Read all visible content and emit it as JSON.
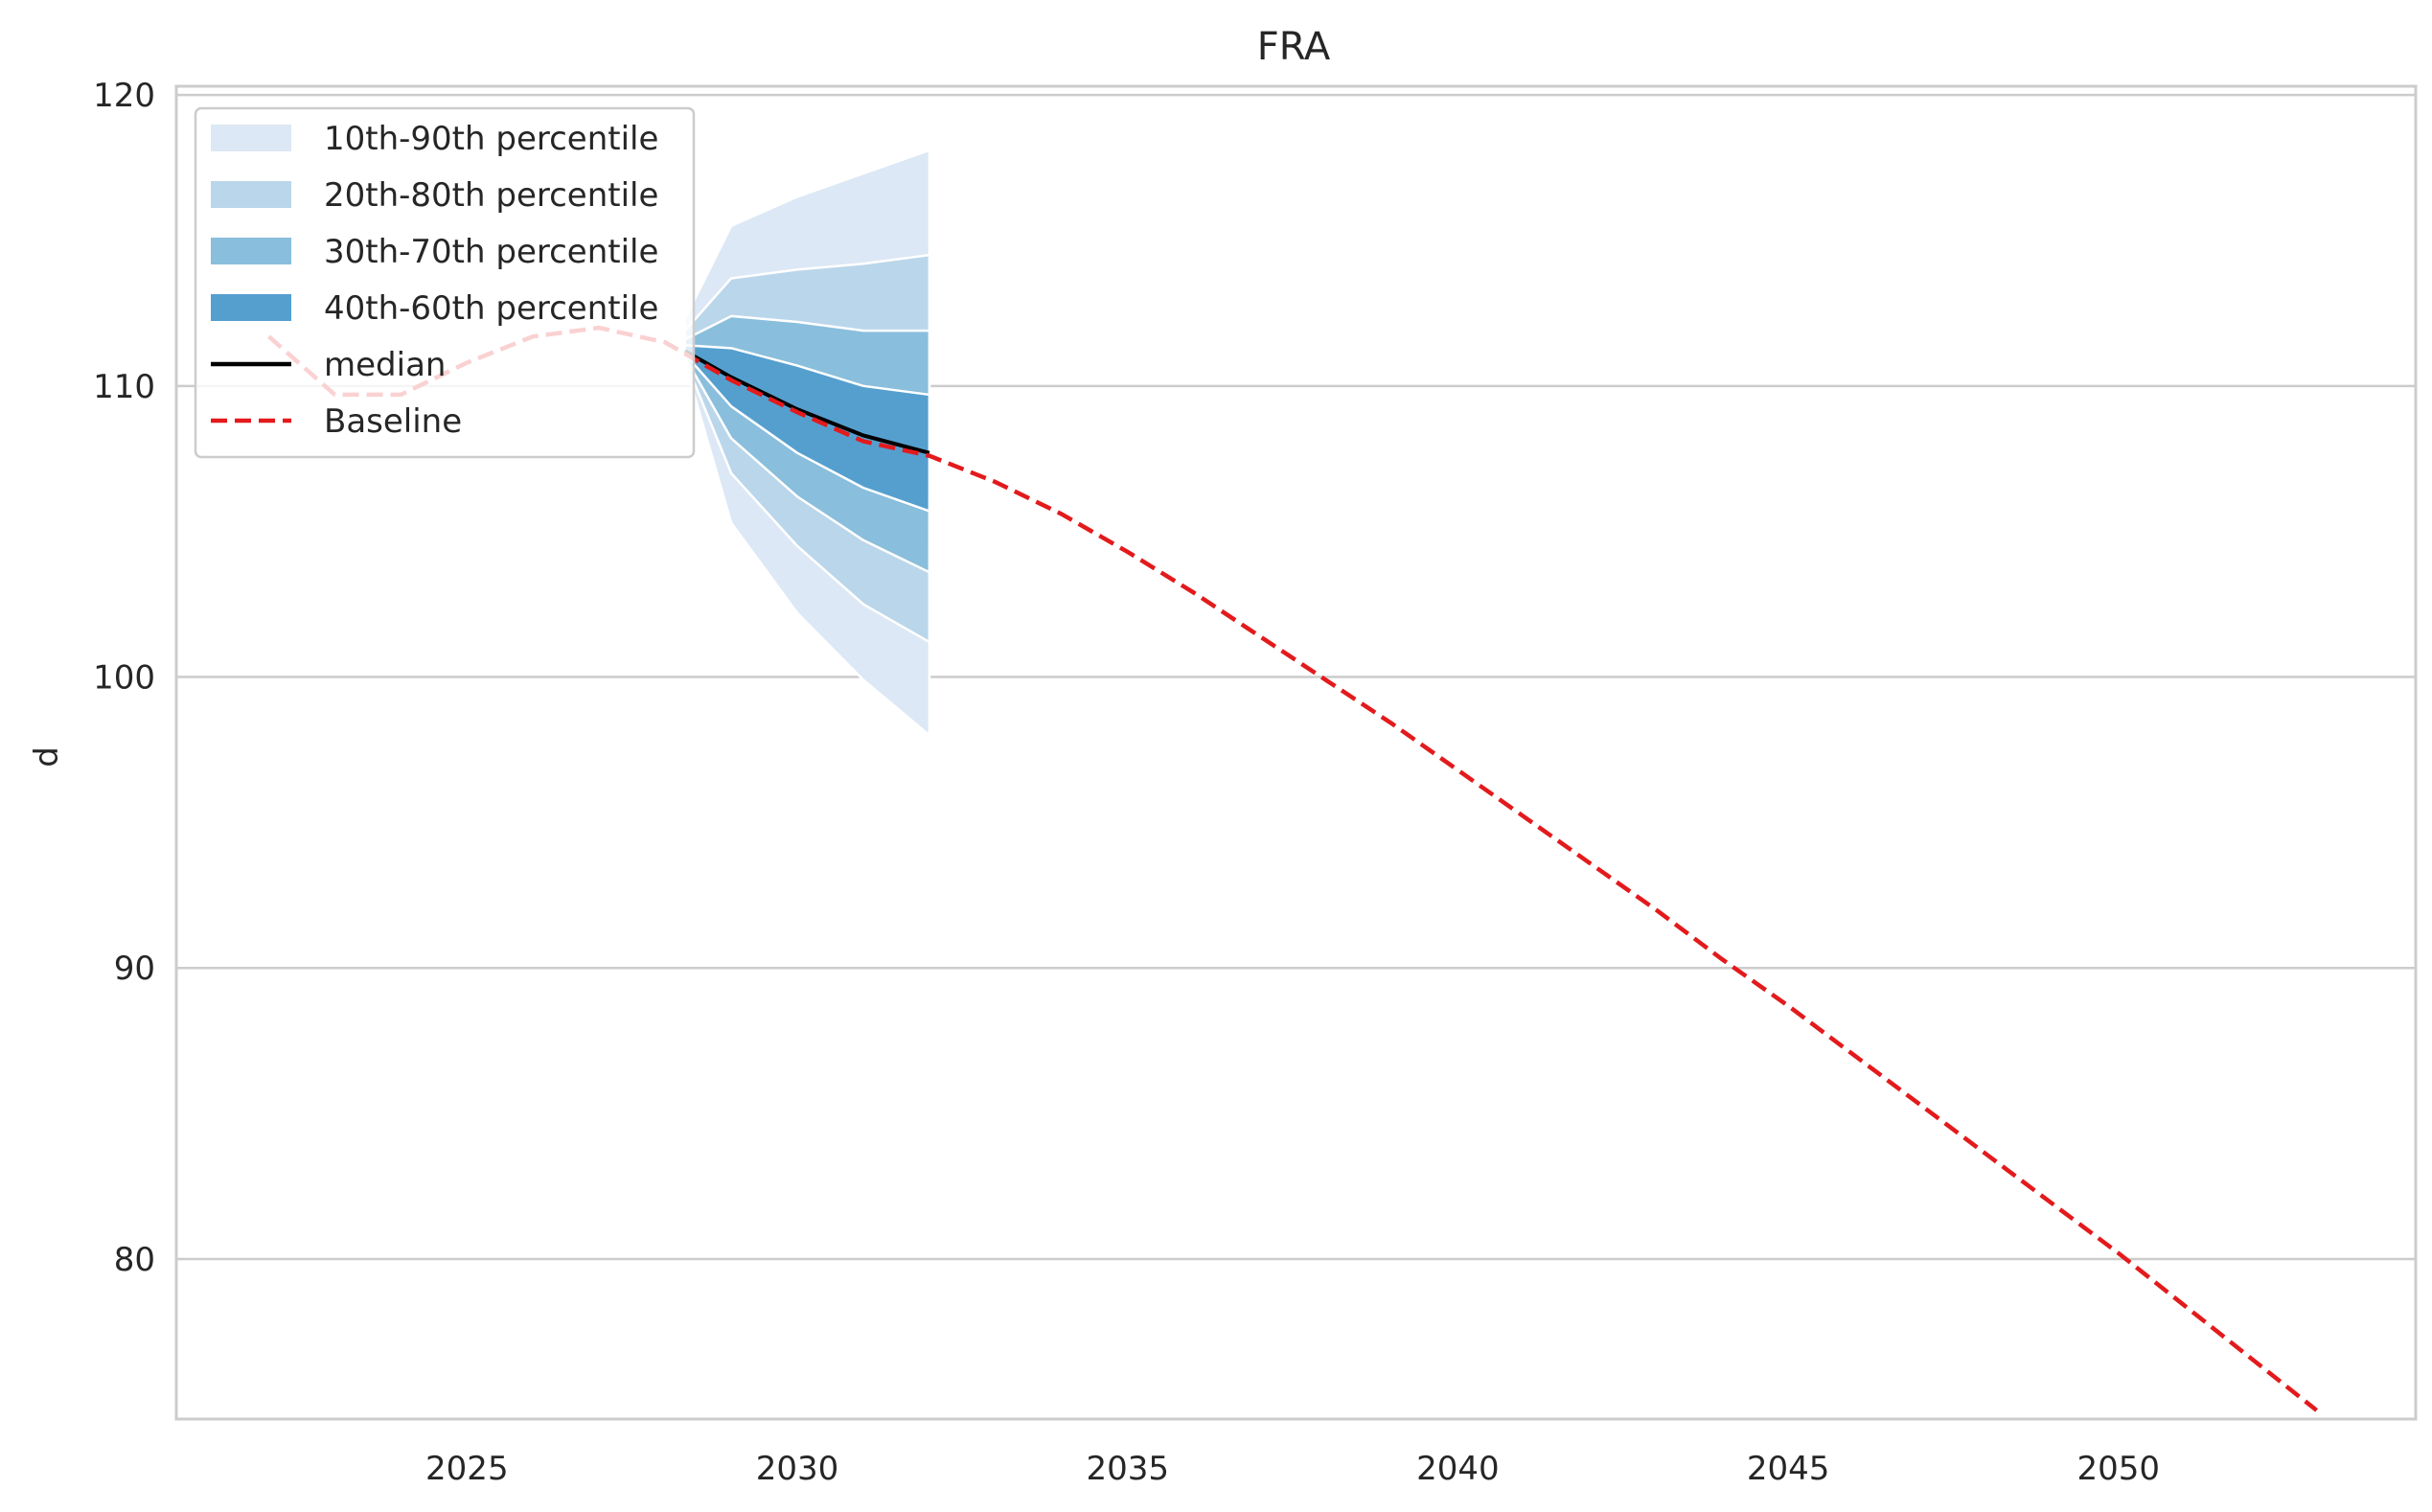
{
  "chart_data": {
    "type": "area",
    "title": "FRA",
    "xlabel": "",
    "ylabel": "d",
    "xlim": [
      2020.6,
      2054.5
    ],
    "ylim": [
      74.5,
      120.3
    ],
    "x_ticks": [
      2025,
      2030,
      2035,
      2040,
      2045,
      2050
    ],
    "y_ticks": [
      80,
      90,
      100,
      110,
      120
    ],
    "grid": "horizontal",
    "legend_position": "top-left",
    "legend": [
      {
        "label": "10th-90th percentile",
        "kind": "patch",
        "color": "#dce8f5"
      },
      {
        "label": "20th-80th percentile",
        "kind": "patch",
        "color": "#bad6ea"
      },
      {
        "label": "30th-70th percentile",
        "kind": "patch",
        "color": "#89bedc"
      },
      {
        "label": "40th-60th percentile",
        "kind": "patch",
        "color": "#559fcf"
      },
      {
        "label": "median",
        "kind": "line",
        "color": "#000000"
      },
      {
        "label": "Baseline",
        "kind": "dashed",
        "color": "#e31a1c"
      }
    ],
    "bands": {
      "x": [
        2028.3,
        2029,
        2030,
        2031,
        2032
      ],
      "p10": [
        110.8,
        105.3,
        102.2,
        99.9,
        98.0
      ],
      "p20": [
        110.9,
        107.0,
        104.5,
        102.5,
        101.2
      ],
      "p30": [
        111.0,
        108.2,
        106.2,
        104.7,
        103.6
      ],
      "p40": [
        111.1,
        109.3,
        107.7,
        106.5,
        105.7
      ],
      "p60": [
        111.4,
        111.3,
        110.7,
        110.0,
        109.7
      ],
      "p70": [
        111.6,
        112.4,
        112.2,
        111.9,
        111.9
      ],
      "p80": [
        111.9,
        113.7,
        114.0,
        114.2,
        114.5
      ],
      "p90": [
        112.3,
        115.5,
        116.5,
        117.3,
        118.1
      ]
    },
    "median": {
      "x": [
        2028.3,
        2029,
        2030,
        2031,
        2032
      ],
      "y": [
        111.2,
        110.3,
        109.2,
        108.3,
        107.7
      ]
    },
    "baseline": {
      "x": [
        2022,
        2023,
        2024,
        2025,
        2026,
        2027,
        2028,
        2029,
        2030,
        2031,
        2032,
        2033,
        2034,
        2035,
        2036,
        2037,
        2038,
        2039,
        2040,
        2041,
        2042,
        2043,
        2044,
        2045,
        2046,
        2047,
        2048,
        2049,
        2050,
        2051,
        2052,
        2053
      ],
      "y": [
        111.7,
        109.7,
        109.7,
        110.8,
        111.7,
        112.0,
        111.5,
        110.2,
        109.1,
        108.1,
        107.6,
        106.7,
        105.6,
        104.3,
        102.9,
        101.4,
        99.9,
        98.4,
        96.8,
        95.2,
        93.6,
        92.0,
        90.3,
        88.7,
        87.0,
        85.3,
        83.6,
        81.9,
        80.2,
        78.4,
        76.6,
        74.8
      ]
    }
  }
}
